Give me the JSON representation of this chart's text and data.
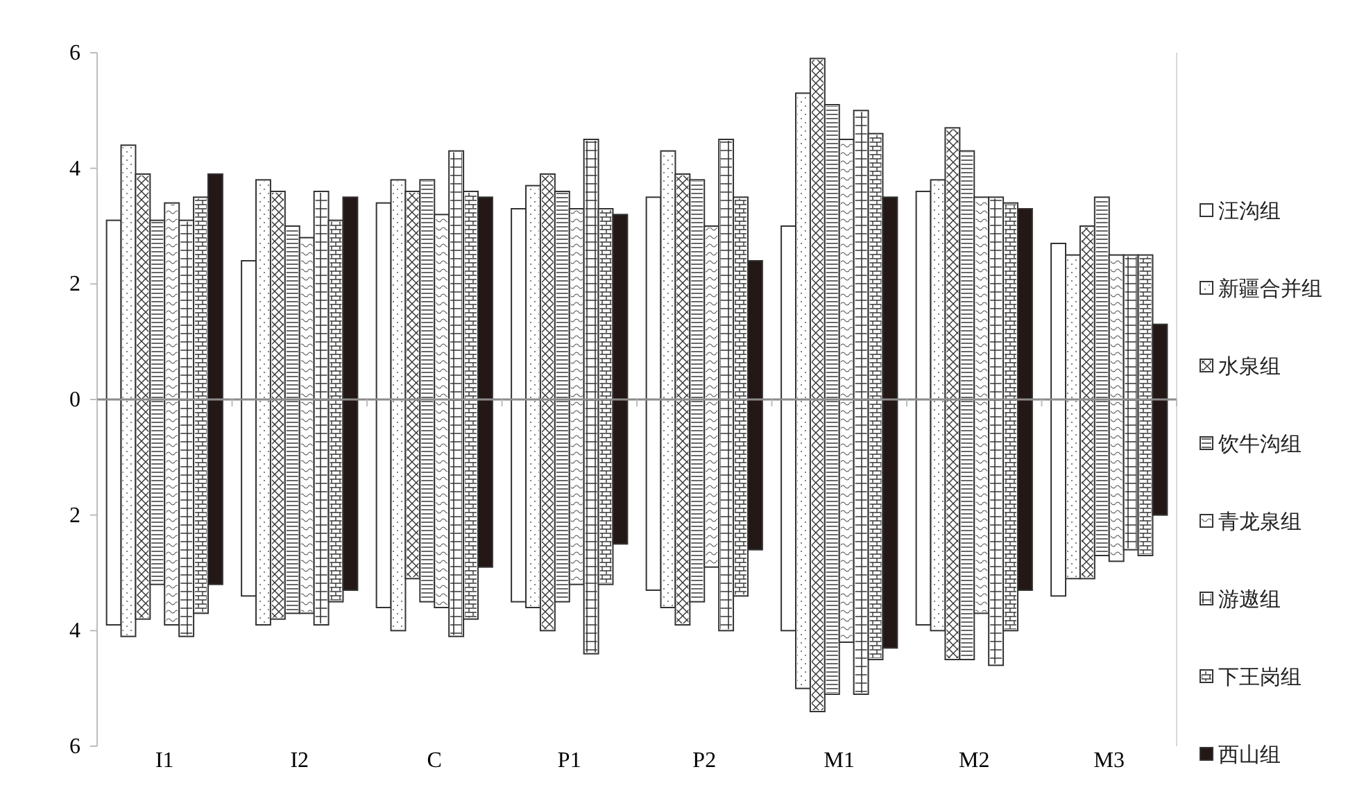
{
  "chart_data": {
    "type": "bar",
    "categories": [
      "I1",
      "I2",
      "C",
      "P1",
      "P2",
      "M1",
      "M2",
      "M3"
    ],
    "ylim": [
      -6,
      6
    ],
    "yticks": [
      {
        "value": -6,
        "label": "6"
      },
      {
        "value": -4,
        "label": "4"
      },
      {
        "value": -2,
        "label": "2"
      },
      0,
      2,
      4,
      6
    ],
    "legend": "right",
    "grid": false,
    "ref_lines": [
      {
        "axis": "y",
        "value": 0,
        "color": "#8c8c8c"
      }
    ],
    "series": [
      {
        "name": "汪沟组",
        "color": "#ffffff",
        "base": [
          -3.9,
          -3.4,
          -3.6,
          -3.5,
          -3.3,
          -4.0,
          -3.9,
          -3.4
        ],
        "values": [
          7.0,
          5.8,
          7.0,
          6.8,
          6.8,
          7.0,
          7.5,
          6.1
        ]
      },
      {
        "name": "新疆合并组",
        "color": "#ffffff",
        "base": [
          -4.1,
          -3.9,
          -4.0,
          -3.6,
          -3.6,
          -5.0,
          -4.0,
          -3.1
        ],
        "values": [
          8.5,
          7.7,
          7.8,
          7.3,
          7.9,
          10.3,
          7.8,
          5.6
        ]
      },
      {
        "name": "水泉组",
        "color": "#ffffff",
        "base": [
          -3.8,
          -3.8,
          -3.1,
          -4.0,
          -3.9,
          -5.4,
          -4.5,
          -3.1
        ],
        "values": [
          7.7,
          7.4,
          6.7,
          7.9,
          7.8,
          11.3,
          9.2,
          6.1
        ]
      },
      {
        "name": "饮牛沟组",
        "color": "#ffffff",
        "base": [
          -3.2,
          -3.7,
          -3.5,
          -3.5,
          -3.5,
          -5.1,
          -4.5,
          -2.7
        ],
        "values": [
          6.3,
          6.7,
          7.3,
          7.1,
          7.3,
          10.2,
          8.8,
          6.2
        ]
      },
      {
        "name": "青龙泉组",
        "color": "#ffffff",
        "base": [
          -3.9,
          -3.7,
          -3.6,
          -3.2,
          -2.9,
          -4.2,
          -3.7,
          -2.8
        ],
        "values": [
          7.3,
          6.5,
          6.8,
          6.5,
          5.9,
          8.7,
          7.2,
          5.3
        ]
      },
      {
        "name": "游遨组",
        "color": "#ffffff",
        "base": [
          -4.1,
          -3.9,
          -4.1,
          -4.4,
          -4.0,
          -5.1,
          -4.6,
          -2.6
        ],
        "values": [
          7.2,
          7.5,
          8.4,
          8.9,
          8.5,
          10.1,
          8.1,
          5.1
        ]
      },
      {
        "name": "下王岗组",
        "color": "#ffffff",
        "base": [
          -3.7,
          -3.5,
          -3.8,
          -3.2,
          -3.4,
          -4.5,
          -4.0,
          -2.7
        ],
        "values": [
          7.2,
          6.6,
          7.4,
          6.5,
          6.9,
          9.1,
          7.4,
          5.2
        ]
      },
      {
        "name": "西山组",
        "color": "#231816",
        "base": [
          -3.2,
          -3.3,
          -2.9,
          -2.5,
          -2.6,
          -4.3,
          -3.3,
          -2.0
        ],
        "values": [
          7.1,
          6.8,
          6.4,
          5.7,
          5.0,
          7.8,
          6.6,
          3.3
        ]
      }
    ]
  }
}
